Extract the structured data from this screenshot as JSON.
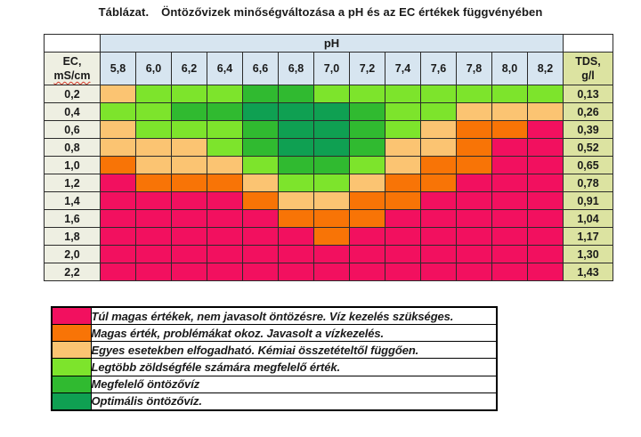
{
  "title": {
    "prefix": "Táblázat.",
    "text": "Öntözővizek minőségváltozása a pH és az EC értékek függvényében"
  },
  "table": {
    "ph_header": "pH",
    "ec_header_lines": [
      "EC,",
      "mS/cm"
    ],
    "tds_header_lines": [
      "TDS,",
      "g/l"
    ]
  },
  "code_map": {
    "P": "pink",
    "O": "orange",
    "T": "tan",
    "L": "lightgreen",
    "G": "green",
    "D": "darkgreen"
  },
  "colors": {
    "pink": "#f2105f",
    "orange": "#f87406",
    "tan": "#fbc472",
    "lightgreen": "#7de42c",
    "green": "#30ba30",
    "darkgreen": "#0fa052",
    "header_blue": "#d7e5f0",
    "label_bg": "#eeefe2",
    "tds_bg": "#dce3a1"
  },
  "chart_data": {
    "type": "heatmap",
    "title": "Öntözővizek minőségváltozása a pH és az EC értékek függvényében",
    "xlabel": "pH",
    "ylabel": "EC, mS/cm",
    "x": [
      "5,8",
      "6,0",
      "6,2",
      "6,4",
      "6,6",
      "6,8",
      "7,0",
      "7,2",
      "7,4",
      "7,6",
      "7,8",
      "8,0",
      "8,2"
    ],
    "rows": [
      {
        "ec": "0,2",
        "tds": "0,13",
        "cells": [
          "T",
          "L",
          "L",
          "L",
          "G",
          "G",
          "L",
          "L",
          "L",
          "L",
          "L",
          "L",
          "L"
        ]
      },
      {
        "ec": "0,4",
        "tds": "0,26",
        "cells": [
          "L",
          "L",
          "G",
          "G",
          "D",
          "D",
          "D",
          "G",
          "L",
          "L",
          "T",
          "T",
          "T"
        ]
      },
      {
        "ec": "0,6",
        "tds": "0,39",
        "cells": [
          "T",
          "L",
          "L",
          "L",
          "G",
          "D",
          "D",
          "G",
          "L",
          "T",
          "O",
          "O",
          "P"
        ]
      },
      {
        "ec": "0,8",
        "tds": "0,52",
        "cells": [
          "T",
          "T",
          "T",
          "L",
          "G",
          "D",
          "D",
          "G",
          "T",
          "T",
          "O",
          "P",
          "P"
        ]
      },
      {
        "ec": "1,0",
        "tds": "0,65",
        "cells": [
          "O",
          "T",
          "T",
          "T",
          "L",
          "G",
          "G",
          "L",
          "T",
          "O",
          "O",
          "P",
          "P"
        ]
      },
      {
        "ec": "1,2",
        "tds": "0,78",
        "cells": [
          "P",
          "O",
          "O",
          "O",
          "T",
          "L",
          "L",
          "T",
          "O",
          "O",
          "P",
          "P",
          "P"
        ]
      },
      {
        "ec": "1,4",
        "tds": "0,91",
        "cells": [
          "P",
          "P",
          "P",
          "P",
          "O",
          "T",
          "T",
          "O",
          "O",
          "P",
          "P",
          "P",
          "P"
        ]
      },
      {
        "ec": "1,6",
        "tds": "1,04",
        "cells": [
          "P",
          "P",
          "P",
          "P",
          "P",
          "O",
          "O",
          "O",
          "P",
          "P",
          "P",
          "P",
          "P"
        ]
      },
      {
        "ec": "1,8",
        "tds": "1,17",
        "cells": [
          "P",
          "P",
          "P",
          "P",
          "P",
          "P",
          "O",
          "P",
          "P",
          "P",
          "P",
          "P",
          "P"
        ]
      },
      {
        "ec": "2,0",
        "tds": "1,30",
        "cells": [
          "P",
          "P",
          "P",
          "P",
          "P",
          "P",
          "P",
          "P",
          "P",
          "P",
          "P",
          "P",
          "P"
        ]
      },
      {
        "ec": "2,2",
        "tds": "1,43",
        "cells": [
          "P",
          "P",
          "P",
          "P",
          "P",
          "P",
          "P",
          "P",
          "P",
          "P",
          "P",
          "P",
          "P"
        ]
      }
    ]
  },
  "legend": [
    {
      "code": "P",
      "label": "Túl magas értékek, nem javasolt öntözésre. Víz kezelés szükséges."
    },
    {
      "code": "O",
      "label": "Magas érték, problémákat okoz. Javasolt  a  vízkezelés."
    },
    {
      "code": "T",
      "label": "Egyes esetekben elfogadható. Kémiai összetételtől függően."
    },
    {
      "code": "L",
      "label": "Legtöbb zöldségféle számára megfelelő érték."
    },
    {
      "code": "G",
      "label": "Megfelelő öntözővíz"
    },
    {
      "code": "D",
      "label": "Optimális öntözővíz."
    }
  ]
}
